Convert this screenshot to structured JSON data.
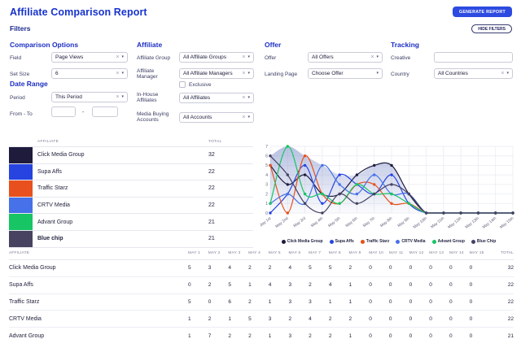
{
  "header": {
    "title": "Affiliate Comparison Report",
    "generate_button": "GENERATE REPORT",
    "hide_filters_button": "HIDE FILTERS",
    "accent_color": "#2d4be0"
  },
  "filters": {
    "heading": "Filters",
    "comparison_options": {
      "heading": "Comparison Options",
      "field_label": "Field",
      "field_value": "Page Views",
      "set_size_label": "Set Size",
      "set_size_value": "6"
    },
    "date_range": {
      "heading": "Date Range",
      "period_label": "Period",
      "period_value": "This Period",
      "from_to_label": "From - To",
      "from_value": "",
      "to_value": ""
    },
    "affiliate": {
      "heading": "Affiliate",
      "group_label": "Affiliate Group",
      "group_value": "All Affiliate Groups",
      "manager_label": "Affiliate Manager",
      "manager_value": "All Affiliate Managers",
      "exclusive_label": "Exclusive",
      "inhouse_label": "In-House Affiliates",
      "inhouse_value": "All Affiliates",
      "media_label": "Media Buying Accounts",
      "media_value": "All Accounts"
    },
    "offer": {
      "heading": "Offer",
      "offer_label": "Offer",
      "offer_value": "All Offers",
      "landing_label": "Landing Page",
      "landing_value": "Choose Offer"
    },
    "tracking": {
      "heading": "Tracking",
      "creative_label": "Creative",
      "creative_value": "",
      "country_label": "Country",
      "country_value": "All Countries"
    }
  },
  "summary_table": {
    "affiliate_header": "AFFILIATE",
    "total_header": "TOTAL",
    "rows": [
      {
        "name": "Click Media Group",
        "total": "32",
        "color": "#1e1b3c",
        "bold": false
      },
      {
        "name": "Supa Affs",
        "total": "22",
        "color": "#2744e0",
        "bold": false
      },
      {
        "name": "Traffic Starz",
        "total": "22",
        "color": "#e8511d",
        "bold": false
      },
      {
        "name": "CRTV Media",
        "total": "22",
        "color": "#4671e8",
        "bold": false
      },
      {
        "name": "Advant Group",
        "total": "21",
        "color": "#17c564",
        "bold": false
      },
      {
        "name": "Blue chip",
        "total": "21",
        "color": "#474360",
        "bold": true
      }
    ]
  },
  "chart_data": {
    "type": "line",
    "x_labels": [
      "May 1st",
      "May 2nd",
      "May 3rd",
      "May 4th",
      "May 5th",
      "May 6th",
      "May 7th",
      "May 8th",
      "May 9th",
      "May 10th",
      "May 11th",
      "May 12th",
      "May 13th",
      "May 14th",
      "May 15th"
    ],
    "ylim": [
      0,
      7
    ],
    "y_ticks": [
      0,
      1,
      2,
      3,
      4,
      5,
      6,
      7
    ],
    "grid": true,
    "smooth": true,
    "legend_position": "bottom",
    "area_fill": {
      "style": "upper-envelope-gradient",
      "color": "#7c8cc9"
    },
    "series": [
      {
        "name": "Click Media Group",
        "color": "#1e1b3c",
        "values": [
          5,
          3,
          4,
          2,
          2,
          4,
          5,
          5,
          2,
          0,
          0,
          0,
          0,
          0,
          0
        ]
      },
      {
        "name": "Supa Affs",
        "color": "#2744e0",
        "values": [
          0,
          2,
          5,
          1,
          4,
          3,
          2,
          4,
          1,
          0,
          0,
          0,
          0,
          0,
          0
        ]
      },
      {
        "name": "Traffic Starz",
        "color": "#e8511d",
        "values": [
          5,
          0,
          6,
          2,
          1,
          3,
          3,
          1,
          1,
          0,
          0,
          0,
          0,
          0,
          0
        ]
      },
      {
        "name": "CRTV Media",
        "color": "#4671e8",
        "values": [
          1,
          2,
          1,
          5,
          3,
          2,
          4,
          2,
          2,
          0,
          0,
          0,
          0,
          0,
          0
        ]
      },
      {
        "name": "Advant Group",
        "color": "#17c564",
        "values": [
          1,
          7,
          2,
          2,
          1,
          3,
          2,
          2,
          1,
          0,
          0,
          0,
          0,
          0,
          0
        ]
      },
      {
        "name": "Blue Chip",
        "color": "#454263",
        "values": [
          6,
          4,
          1,
          0,
          2,
          1,
          2,
          3,
          2,
          0,
          0,
          0,
          0,
          0,
          0
        ]
      }
    ]
  },
  "detail_table": {
    "headers": [
      "AFFILIATE",
      "MAY 1",
      "MAY 2",
      "MAY 3",
      "MAY 4",
      "MAY 5",
      "MAY 6",
      "MAY 7",
      "MAY 8",
      "MAY 9",
      "MAY 10",
      "MAY 11",
      "MAY 12",
      "MAY 13",
      "MAY 14",
      "MAY 15",
      "TOTAL"
    ],
    "rows": [
      {
        "name": "Click Media Group",
        "values": [
          5,
          3,
          4,
          2,
          2,
          4,
          5,
          5,
          2,
          0,
          0,
          0,
          0,
          0,
          0
        ],
        "total": 32
      },
      {
        "name": "Supa Affs",
        "values": [
          0,
          2,
          5,
          1,
          4,
          3,
          2,
          4,
          1,
          0,
          0,
          0,
          0,
          0,
          0
        ],
        "total": 22
      },
      {
        "name": "Traffic Starz",
        "values": [
          5,
          0,
          6,
          2,
          1,
          3,
          3,
          1,
          1,
          0,
          0,
          0,
          0,
          0,
          0
        ],
        "total": 22
      },
      {
        "name": "CRTV Media",
        "values": [
          1,
          2,
          1,
          5,
          3,
          2,
          4,
          2,
          2,
          0,
          0,
          0,
          0,
          0,
          0
        ],
        "total": 22
      },
      {
        "name": "Advant Group",
        "values": [
          1,
          7,
          2,
          2,
          1,
          3,
          2,
          2,
          1,
          0,
          0,
          0,
          0,
          0,
          0
        ],
        "total": 21
      }
    ]
  }
}
